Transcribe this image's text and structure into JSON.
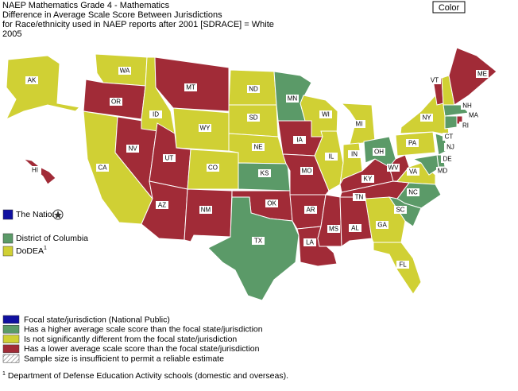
{
  "header": {
    "lines": [
      "NAEP Mathematics Grade 4 - Mathematics",
      "Difference in Average Scale Score Between Jurisdictions",
      "for Race/ethnicity used in NAEP reports after 2001 [SDRACE] = White",
      "2005"
    ]
  },
  "button": "Color",
  "states": [
    {
      "label": "AK",
      "color": "#d0d034"
    },
    {
      "label": "HI",
      "color": "#a12b37"
    },
    {
      "label": "WA",
      "color": "#d0d034"
    },
    {
      "label": "OR",
      "color": "#a12b37"
    },
    {
      "label": "CA",
      "color": "#d0d034"
    },
    {
      "label": "NV",
      "color": "#a12b37"
    },
    {
      "label": "ID",
      "color": "#d0d034"
    },
    {
      "label": "MT",
      "color": "#a12b37"
    },
    {
      "label": "WY",
      "color": "#d0d034"
    },
    {
      "label": "UT",
      "color": "#a12b37"
    },
    {
      "label": "AZ",
      "color": "#a12b37"
    },
    {
      "label": "CO",
      "color": "#d0d034"
    },
    {
      "label": "NM",
      "color": "#a12b37"
    },
    {
      "label": "ND",
      "color": "#d0d034"
    },
    {
      "label": "SD",
      "color": "#d0d034"
    },
    {
      "label": "NE",
      "color": "#d0d034"
    },
    {
      "label": "KS",
      "color": "#5b9a68"
    },
    {
      "label": "OK",
      "color": "#a12b37"
    },
    {
      "label": "TX",
      "color": "#5b9a68"
    },
    {
      "label": "MN",
      "color": "#5b9a68"
    },
    {
      "label": "IA",
      "color": "#a12b37"
    },
    {
      "label": "MO",
      "color": "#a12b37"
    },
    {
      "label": "AR",
      "color": "#a12b37"
    },
    {
      "label": "LA",
      "color": "#a12b37"
    },
    {
      "label": "WI",
      "color": "#d0d034"
    },
    {
      "label": "IL",
      "color": "#d0d034"
    },
    {
      "label": "MS",
      "color": "#a12b37"
    },
    {
      "label": "AL",
      "color": "#a12b37"
    },
    {
      "label": "MI",
      "color": "#d0d034"
    },
    {
      "label": "IN",
      "color": "#d0d034"
    },
    {
      "label": "KY",
      "color": "#a12b37"
    },
    {
      "label": "TN",
      "color": "#a12b37"
    },
    {
      "label": "OH",
      "color": "#5b9a68"
    },
    {
      "label": "GA",
      "color": "#d0d034"
    },
    {
      "label": "FL",
      "color": "#d0d034"
    },
    {
      "label": "WV",
      "color": "#a12b37"
    },
    {
      "label": "VA",
      "color": "#d0d034"
    },
    {
      "label": "NC",
      "color": "#5b9a68"
    },
    {
      "label": "SC",
      "color": "#5b9a68"
    },
    {
      "label": "PA",
      "color": "#d0d034"
    },
    {
      "label": "NY",
      "color": "#d0d034"
    },
    {
      "label": "VT",
      "color": "#a12b37"
    },
    {
      "label": "NH",
      "color": "#d0d034"
    },
    {
      "label": "ME",
      "color": "#a12b37"
    },
    {
      "label": "MA",
      "color": "#5b9a68"
    },
    {
      "label": "RI",
      "color": "#a12b37"
    },
    {
      "label": "CT",
      "color": "#5b9a68"
    },
    {
      "label": "NJ",
      "color": "#5b9a68"
    },
    {
      "label": "DE",
      "color": "#5b9a68"
    },
    {
      "label": "MD",
      "color": "#5b9a68"
    }
  ],
  "side_legend": [
    {
      "label": "The Nation",
      "color": "#1010a0"
    },
    {
      "label": "District of Columbia",
      "color": "#5b9a68"
    },
    {
      "label": "DoDEA",
      "note": "1",
      "color": "#d0d034"
    }
  ],
  "legend": [
    {
      "label": "Focal state/jurisdiction (National Public)",
      "color": "#1010a0"
    },
    {
      "label": "Has a higher average scale score than the focal state/jurisdiction",
      "color": "#5b9a68"
    },
    {
      "label": "Is not significantly different from the focal state/jurisdiction",
      "color": "#d0d034"
    },
    {
      "label": "Has a lower average scale score than the focal state/jurisdiction",
      "color": "#a12b37"
    },
    {
      "label": "Sample size is insufficient to permit a reliable estimate",
      "pattern": "hatch"
    }
  ],
  "footnote": {
    "mark": "1",
    "text": "Department of Defense Education Activity schools (domestic and overseas)."
  }
}
